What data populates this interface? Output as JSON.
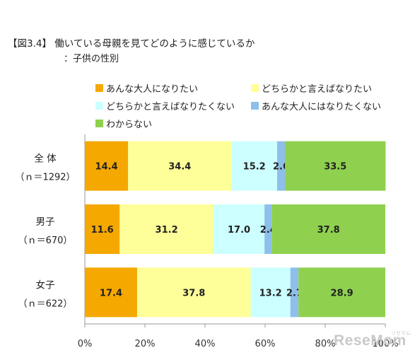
{
  "title": "【図3.4】 働いている母親を見てどのように感じているか",
  "subtitle": "：子供の性別",
  "chart_data": {
    "type": "bar",
    "orientation": "horizontal-stacked",
    "categories": [
      {
        "name": "全 体",
        "n": "（ｎ＝1292）"
      },
      {
        "name": "男子",
        "n": "（ｎ＝670）"
      },
      {
        "name": "女子",
        "n": "（ｎ＝622）"
      }
    ],
    "series": [
      {
        "name": "あんな大人になりたい",
        "color": "#f5a800",
        "values": [
          14.4,
          11.6,
          17.4
        ]
      },
      {
        "name": "どちらかと言えばなりたい",
        "color": "#ffff99",
        "values": [
          34.4,
          31.2,
          37.8
        ]
      },
      {
        "name": "どちらかと言えばなりたくない",
        "color": "#ccffff",
        "values": [
          15.2,
          17.0,
          13.2
        ]
      },
      {
        "name": "あんな大人にはなりたくない",
        "color": "#8ebfea",
        "values": [
          2.6,
          2.4,
          2.7
        ]
      },
      {
        "name": "わからない",
        "color": "#8fd14f",
        "values": [
          33.5,
          37.8,
          28.9
        ]
      }
    ],
    "xlim": [
      0,
      100
    ],
    "xticks": [
      "0%",
      "20%",
      "40%",
      "60%",
      "80%",
      "100%"
    ],
    "legend_position": "top"
  },
  "watermark": {
    "logo": "ReseMom",
    "small": "リセマム"
  }
}
